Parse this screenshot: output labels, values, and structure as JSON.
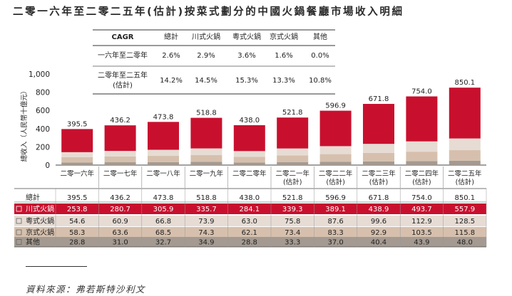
{
  "title": "二零一六年至二零二五年(估計)按菜式劃分的中國火鍋餐廳市場收入明細",
  "source": "資料來源：弗若斯特沙利文",
  "colors": {
    "sichuan": "#c8102e",
    "cantonese": "#e6dcd4",
    "beijing": "#d6c0ad",
    "other": "#a49a91"
  },
  "cagr_table": {
    "header": [
      "CAGR",
      "總計",
      "川式火鍋",
      "粵式火鍋",
      "京式火鍋",
      "其他"
    ],
    "rows": [
      {
        "period": "一六年至二零年",
        "values": [
          "2.6%",
          "2.9%",
          "3.6%",
          "1.6%",
          "0.0%"
        ]
      },
      {
        "period_line1": "二零年至二五年",
        "period_line2": "(估計)",
        "values": [
          "14.2%",
          "14.5%",
          "15.3%",
          "13.3%",
          "10.8%"
        ]
      }
    ]
  },
  "chart_data": {
    "type": "bar",
    "stacked": true,
    "ylabel": "總收入（人民幣十億元）",
    "ylim": [
      0,
      1000
    ],
    "yticks": [
      "0",
      "200",
      "400",
      "600",
      "800",
      "1,000"
    ],
    "categories": [
      [
        "二零一六年"
      ],
      [
        "二零一七年"
      ],
      [
        "二零一八年"
      ],
      [
        "二零一九年"
      ],
      [
        "二零二零年"
      ],
      [
        "二零二一年",
        "(估計)"
      ],
      [
        "二零二二年",
        "(估計)"
      ],
      [
        "二零二三年",
        "(估計)"
      ],
      [
        "二零二四年",
        "(估計)"
      ],
      [
        "二零二五年",
        "(估計)"
      ]
    ],
    "totals": [
      "395.5",
      "436.2",
      "473.8",
      "518.8",
      "438.0",
      "521.8",
      "596.9",
      "671.8",
      "754.0",
      "850.1"
    ],
    "series": [
      {
        "name": "其他",
        "values": [
          28.8,
          31.0,
          32.7,
          34.9,
          28.8,
          33.3,
          37.0,
          40.4,
          43.9,
          48.0
        ]
      },
      {
        "name": "京式火鍋",
        "values": [
          58.3,
          63.6,
          68.5,
          74.3,
          62.1,
          73.4,
          83.3,
          92.9,
          103.5,
          115.8
        ]
      },
      {
        "name": "粵式火鍋",
        "values": [
          54.6,
          60.9,
          66.8,
          73.9,
          63.0,
          75.8,
          87.6,
          99.6,
          112.9,
          128.5
        ]
      },
      {
        "name": "川式火鍋",
        "values": [
          253.8,
          280.7,
          305.9,
          335.7,
          284.1,
          339.3,
          389.1,
          438.9,
          493.7,
          557.9
        ]
      }
    ]
  },
  "data_table": {
    "rows": [
      {
        "label": "總計",
        "values": [
          "395.5",
          "436.2",
          "473.8",
          "518.8",
          "438.0",
          "521.8",
          "596.9",
          "671.8",
          "754.0",
          "850.1"
        ]
      },
      {
        "label": "川式火鍋",
        "values": [
          "253.8",
          "280.7",
          "305.9",
          "335.7",
          "284.1",
          "339.3",
          "389.1",
          "438.9",
          "493.7",
          "557.9"
        ]
      },
      {
        "label": "粵式火鍋",
        "values": [
          "54.6",
          "60.9",
          "66.8",
          "73.9",
          "63.0",
          "75.8",
          "87.6",
          "99.6",
          "112.9",
          "128.5"
        ]
      },
      {
        "label": "京式火鍋",
        "values": [
          "58.3",
          "63.6",
          "68.5",
          "74.3",
          "62.1",
          "73.4",
          "83.3",
          "92.9",
          "103.5",
          "115.8"
        ]
      },
      {
        "label": "其他",
        "values": [
          "28.8",
          "31.0",
          "32.7",
          "34.9",
          "28.8",
          "33.3",
          "37.0",
          "40.4",
          "43.9",
          "48.0"
        ]
      }
    ]
  }
}
